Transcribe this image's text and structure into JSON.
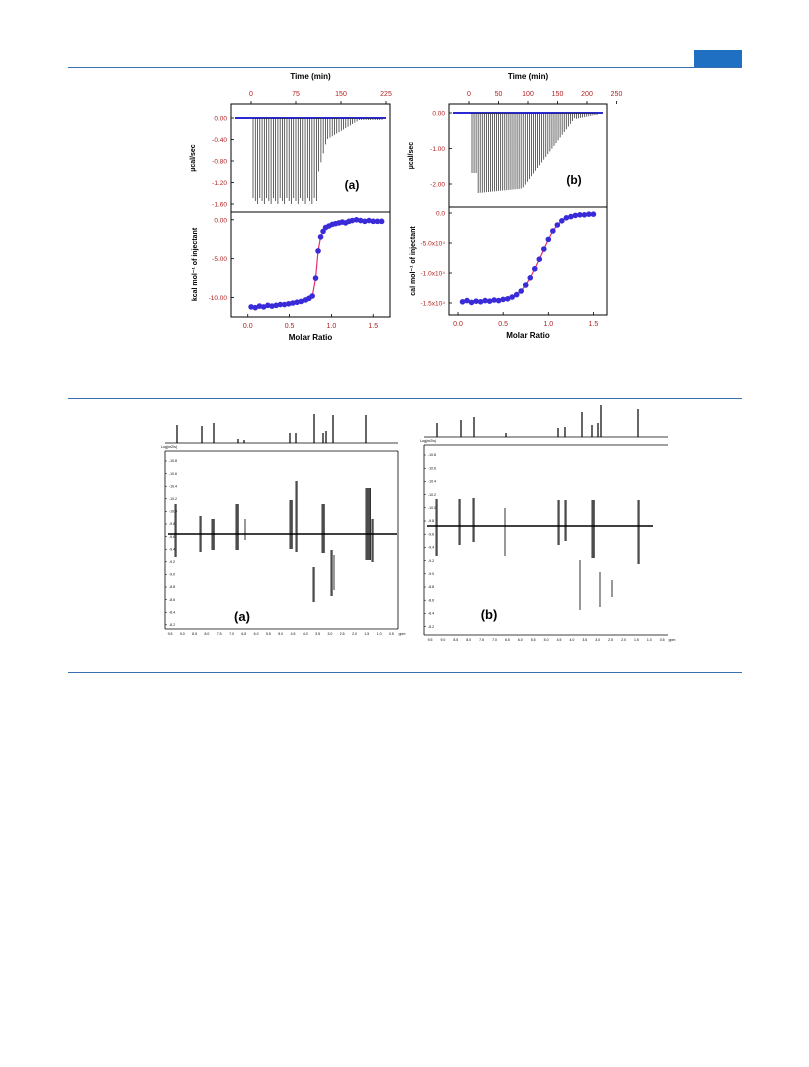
{
  "colors": {
    "rule": "#3b6fb0",
    "header_tab": "#1f6fc2",
    "axis_text_red": "#b02020",
    "fit_line": "#e0306a",
    "marker": "#3a2bd8",
    "baseline": "#2a2ad0"
  },
  "figure1": {
    "panels": [
      {
        "label": "(a)",
        "top_axis_label": "Time (min)",
        "top_ticks": [
          "0",
          "75",
          "150",
          "225"
        ],
        "top_ylabel": "µcal/sec",
        "top_yticks": [
          "0.00",
          "-0.40",
          "-0.80",
          "-1.20",
          "-1.60"
        ],
        "bottom_ylabel": "kcal mol⁻¹ of injectant",
        "bottom_yticks": [
          "0.00",
          "-5.00",
          "-10.00"
        ],
        "xticks": [
          "0.0",
          "0.5",
          "1.0",
          "1.5"
        ],
        "xlabel": "Molar Ratio"
      },
      {
        "label": "(b)",
        "top_axis_label": "Time (min)",
        "top_ticks": [
          "0",
          "50",
          "100",
          "150",
          "200",
          "250"
        ],
        "top_ylabel": "µcal/sec",
        "top_yticks": [
          "0.00",
          "-1.00",
          "-2.00"
        ],
        "bottom_ylabel": "cal mol⁻¹ of injectant",
        "bottom_yticks": [
          "0.0",
          "-5.0x10⁴",
          "-1.0x10⁴",
          "-1.5x10⁴"
        ],
        "xticks": [
          "0.0",
          "0.5",
          "1.0",
          "1.5"
        ],
        "xlabel": "Molar Ratio"
      }
    ]
  },
  "figure2": {
    "panels": [
      {
        "label": "(a)",
        "ylabel": "Log(m2/s)",
        "yticks": [
          "-10.8",
          "-10.6",
          "-10.4",
          "-10.2",
          "-10.0",
          "-9.8",
          "-9.6",
          "-9.4",
          "-9.2",
          "-9.0",
          "-8.8",
          "-8.6",
          "-8.4",
          "-8.2"
        ],
        "xticks": [
          "9.5",
          "9.0",
          "8.5",
          "8.0",
          "7.5",
          "7.0",
          "6.5",
          "6.0",
          "5.5",
          "5.0",
          "4.5",
          "4.0",
          "3.5",
          "3.0",
          "2.5",
          "2.0",
          "1.5",
          "1.0",
          "0.5"
        ],
        "xunit": "ppm"
      },
      {
        "label": "(b)",
        "ylabel": "Log(m2/s)",
        "yticks": [
          "-10.8",
          "-10.6",
          "-10.4",
          "-10.2",
          "-10.0",
          "-9.8",
          "-9.6",
          "-9.4",
          "-9.2",
          "-9.0",
          "-8.8",
          "-8.6",
          "-8.4",
          "-8.2"
        ],
        "xticks": [
          "9.5",
          "9.0",
          "8.5",
          "8.0",
          "7.5",
          "7.0",
          "6.5",
          "6.0",
          "5.5",
          "5.0",
          "4.5",
          "4.0",
          "3.5",
          "3.0",
          "2.5",
          "2.0",
          "1.5",
          "1.0",
          "0.5"
        ],
        "xunit": "ppm"
      }
    ]
  },
  "chart_data": [
    {
      "type": "scatter",
      "title": "",
      "xlabel": "Molar Ratio",
      "ylabel": "kcal mol⁻¹ of injectant",
      "xlim": [
        -0.2,
        1.7
      ],
      "ylim": [
        -12.5,
        1.0
      ],
      "series": [
        {
          "x": [
            0.04,
            0.09,
            0.14,
            0.19,
            0.24,
            0.29,
            0.34,
            0.39,
            0.44,
            0.49,
            0.54,
            0.59,
            0.64,
            0.69,
            0.73,
            0.77,
            0.81,
            0.84,
            0.87,
            0.9,
            0.93,
            0.97,
            1.01,
            1.05,
            1.09,
            1.13,
            1.17,
            1.21,
            1.25,
            1.3,
            1.35,
            1.4,
            1.45,
            1.5,
            1.55,
            1.6
          ],
          "y": [
            -11.2,
            -11.3,
            -11.1,
            -11.2,
            -11.0,
            -11.1,
            -11.0,
            -10.9,
            -10.9,
            -10.8,
            -10.7,
            -10.6,
            -10.5,
            -10.3,
            -10.1,
            -9.8,
            -7.5,
            -4.0,
            -2.2,
            -1.5,
            -1.0,
            -0.8,
            -0.6,
            -0.5,
            -0.4,
            -0.3,
            -0.4,
            -0.2,
            -0.1,
            0.0,
            -0.1,
            -0.2,
            -0.1,
            -0.2,
            -0.2,
            -0.2
          ]
        }
      ]
    },
    {
      "type": "scatter",
      "title": "",
      "xlabel": "Molar Ratio",
      "ylabel": "cal mol⁻¹ of injectant",
      "xlim": [
        -0.1,
        1.65
      ],
      "ylim": [
        -17000,
        1000
      ],
      "series": [
        {
          "x": [
            0.05,
            0.1,
            0.15,
            0.2,
            0.25,
            0.3,
            0.35,
            0.4,
            0.45,
            0.5,
            0.55,
            0.6,
            0.65,
            0.7,
            0.75,
            0.8,
            0.85,
            0.9,
            0.95,
            1.0,
            1.05,
            1.1,
            1.15,
            1.2,
            1.25,
            1.3,
            1.35,
            1.4,
            1.45,
            1.5
          ],
          "y": [
            -14800,
            -14600,
            -14900,
            -14700,
            -14800,
            -14600,
            -14700,
            -14500,
            -14600,
            -14400,
            -14300,
            -14000,
            -13600,
            -13000,
            -12000,
            -10800,
            -9300,
            -7700,
            -6000,
            -4400,
            -3000,
            -2000,
            -1300,
            -800,
            -600,
            -400,
            -300,
            -300,
            -200,
            -200
          ]
        }
      ]
    }
  ]
}
